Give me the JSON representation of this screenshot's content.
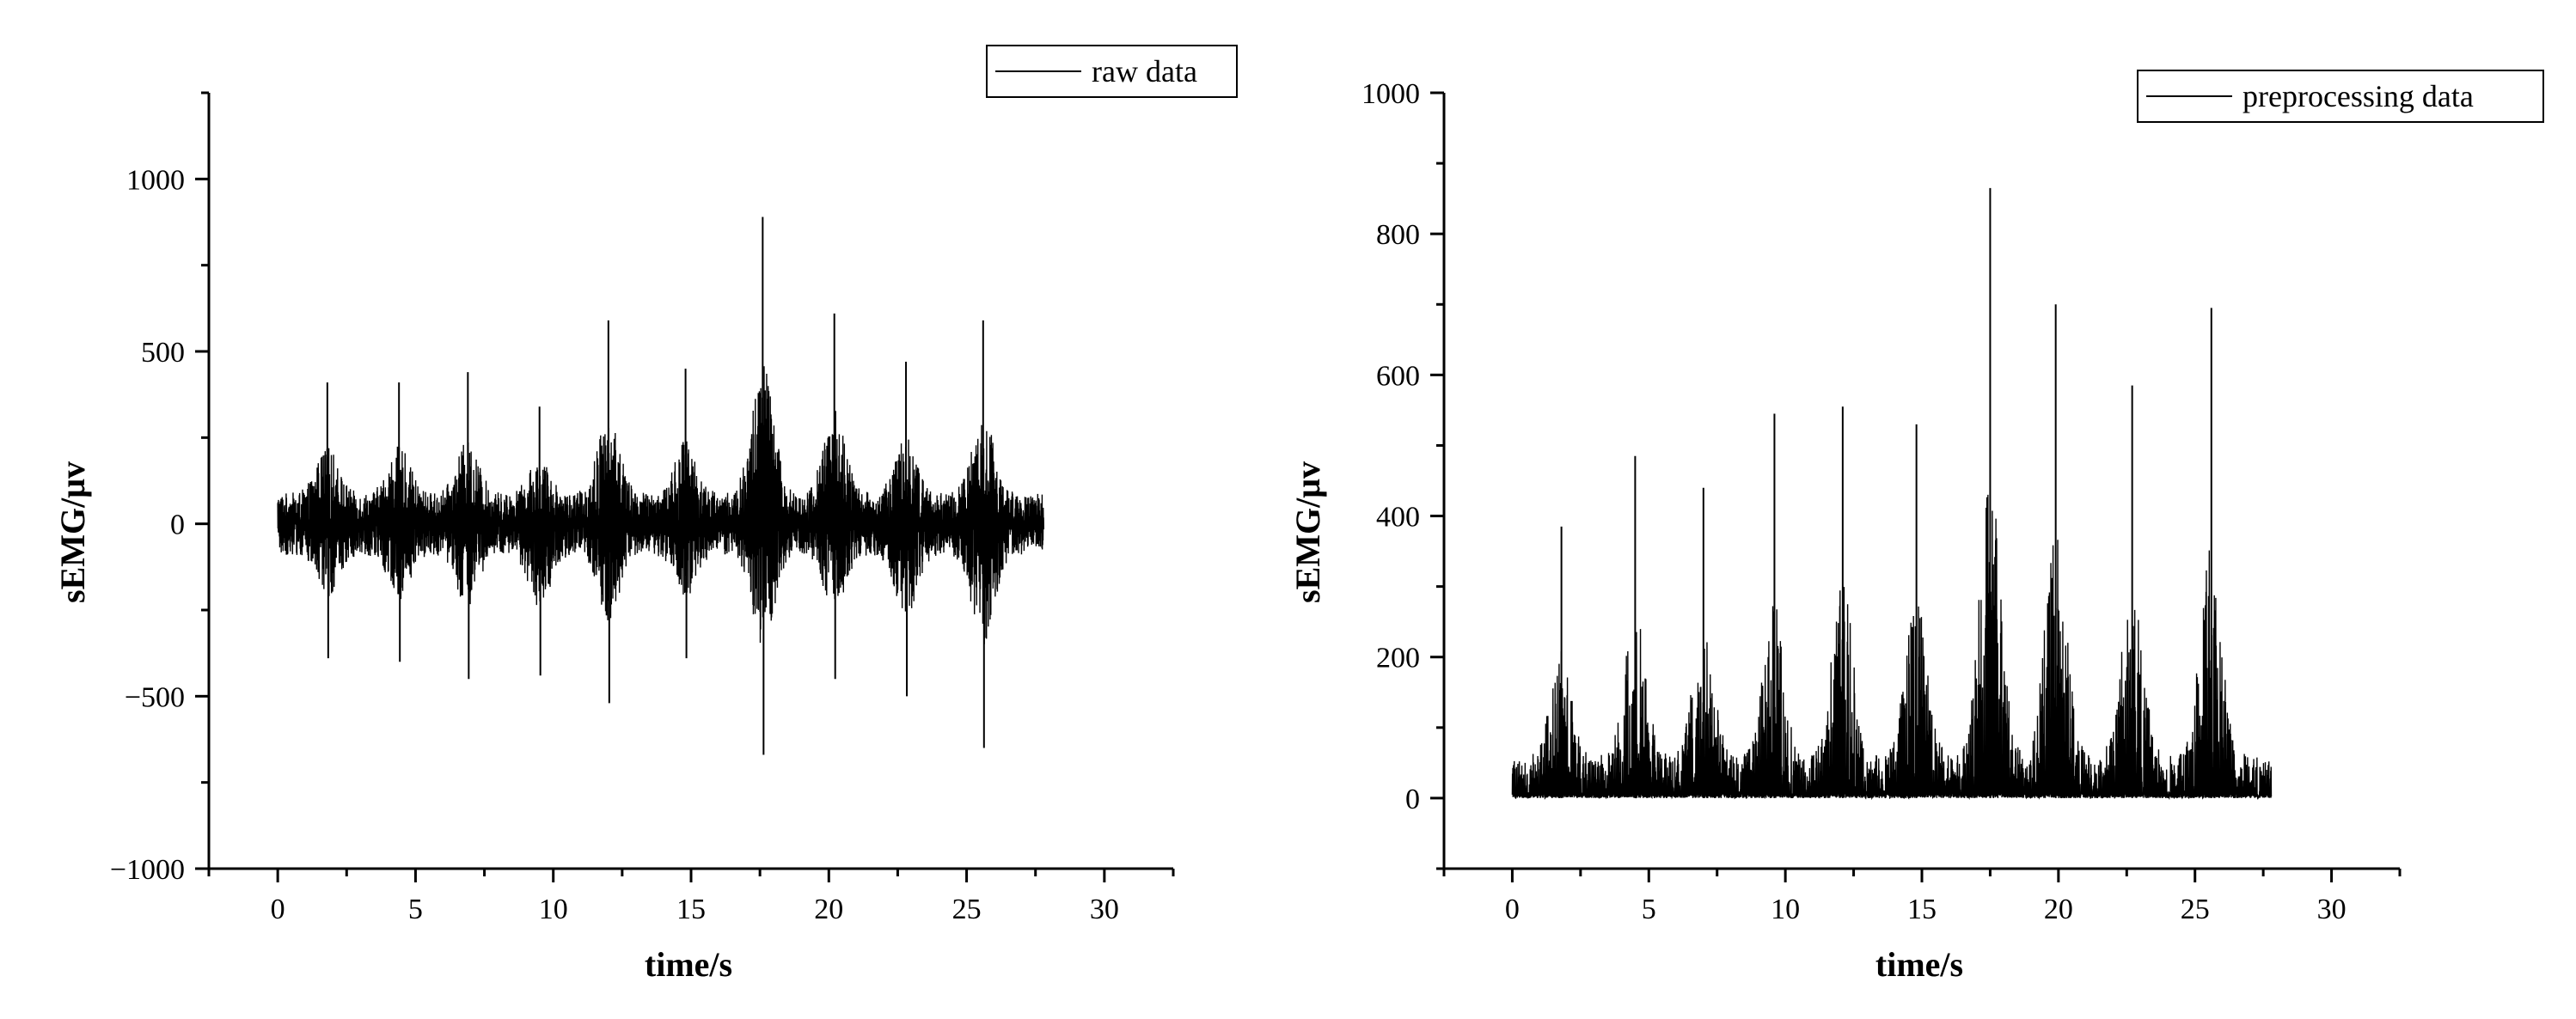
{
  "chart_data": [
    {
      "type": "line",
      "title": "",
      "xlabel": "time/s",
      "ylabel": "sEMG/μv",
      "xlim": [
        -2.5,
        32.5
      ],
      "ylim": [
        -1000,
        1250
      ],
      "x_ticks": [
        0,
        5,
        10,
        15,
        20,
        25,
        30
      ],
      "x_tick_labels": [
        "0",
        "5",
        "10",
        "15",
        "20",
        "25",
        "30"
      ],
      "y_ticks": [
        -1000,
        -500,
        0,
        500,
        1000
      ],
      "y_tick_labels": [
        "−1000",
        "−500",
        "0",
        "500",
        "1000"
      ],
      "legend": {
        "entries": [
          "raw data"
        ],
        "placement": "top-right"
      },
      "grid": false,
      "series": [
        {
          "name": "raw data",
          "color": "#000000",
          "x_range": [
            0,
            27.8
          ],
          "signal": "bipolar",
          "baseline_amplitude": 90,
          "bursts": [
            {
              "t": 1.8,
              "max": 410,
              "min": -390
            },
            {
              "t": 4.4,
              "max": 410,
              "min": -400
            },
            {
              "t": 6.9,
              "max": 440,
              "min": -450
            },
            {
              "t": 9.5,
              "max": 340,
              "min": -440
            },
            {
              "t": 12.0,
              "max": 590,
              "min": -520
            },
            {
              "t": 14.8,
              "max": 450,
              "min": -390
            },
            {
              "t": 17.6,
              "max": 890,
              "min": -670
            },
            {
              "t": 20.2,
              "max": 610,
              "min": -450
            },
            {
              "t": 22.8,
              "max": 470,
              "min": -500
            },
            {
              "t": 25.6,
              "max": 590,
              "min": -650
            }
          ]
        }
      ]
    },
    {
      "type": "line",
      "title": "",
      "xlabel": "time/s",
      "ylabel": "sEMG/μv",
      "xlim": [
        -2.5,
        32.5
      ],
      "ylim": [
        -100,
        1000
      ],
      "x_ticks": [
        0,
        5,
        10,
        15,
        20,
        25,
        30
      ],
      "x_tick_labels": [
        "0",
        "5",
        "10",
        "15",
        "20",
        "25",
        "30"
      ],
      "y_ticks": [
        0,
        200,
        400,
        600,
        800,
        1000
      ],
      "y_tick_labels": [
        "0",
        "200",
        "400",
        "600",
        "800",
        "1000"
      ],
      "legend": {
        "entries": [
          "preprocessing data"
        ],
        "placement": "top-right"
      },
      "grid": false,
      "series": [
        {
          "name": "preprocessing data",
          "color": "#000000",
          "x_range": [
            0,
            27.8
          ],
          "signal": "rectified",
          "baseline_amplitude": 60,
          "bursts": [
            {
              "t": 1.8,
              "max": 385
            },
            {
              "t": 4.5,
              "max": 485
            },
            {
              "t": 7.0,
              "max": 440
            },
            {
              "t": 9.6,
              "max": 545
            },
            {
              "t": 12.1,
              "max": 555
            },
            {
              "t": 14.8,
              "max": 530
            },
            {
              "t": 17.5,
              "max": 865
            },
            {
              "t": 19.9,
              "max": 700
            },
            {
              "t": 22.7,
              "max": 585
            },
            {
              "t": 25.6,
              "max": 695
            }
          ]
        }
      ]
    }
  ]
}
